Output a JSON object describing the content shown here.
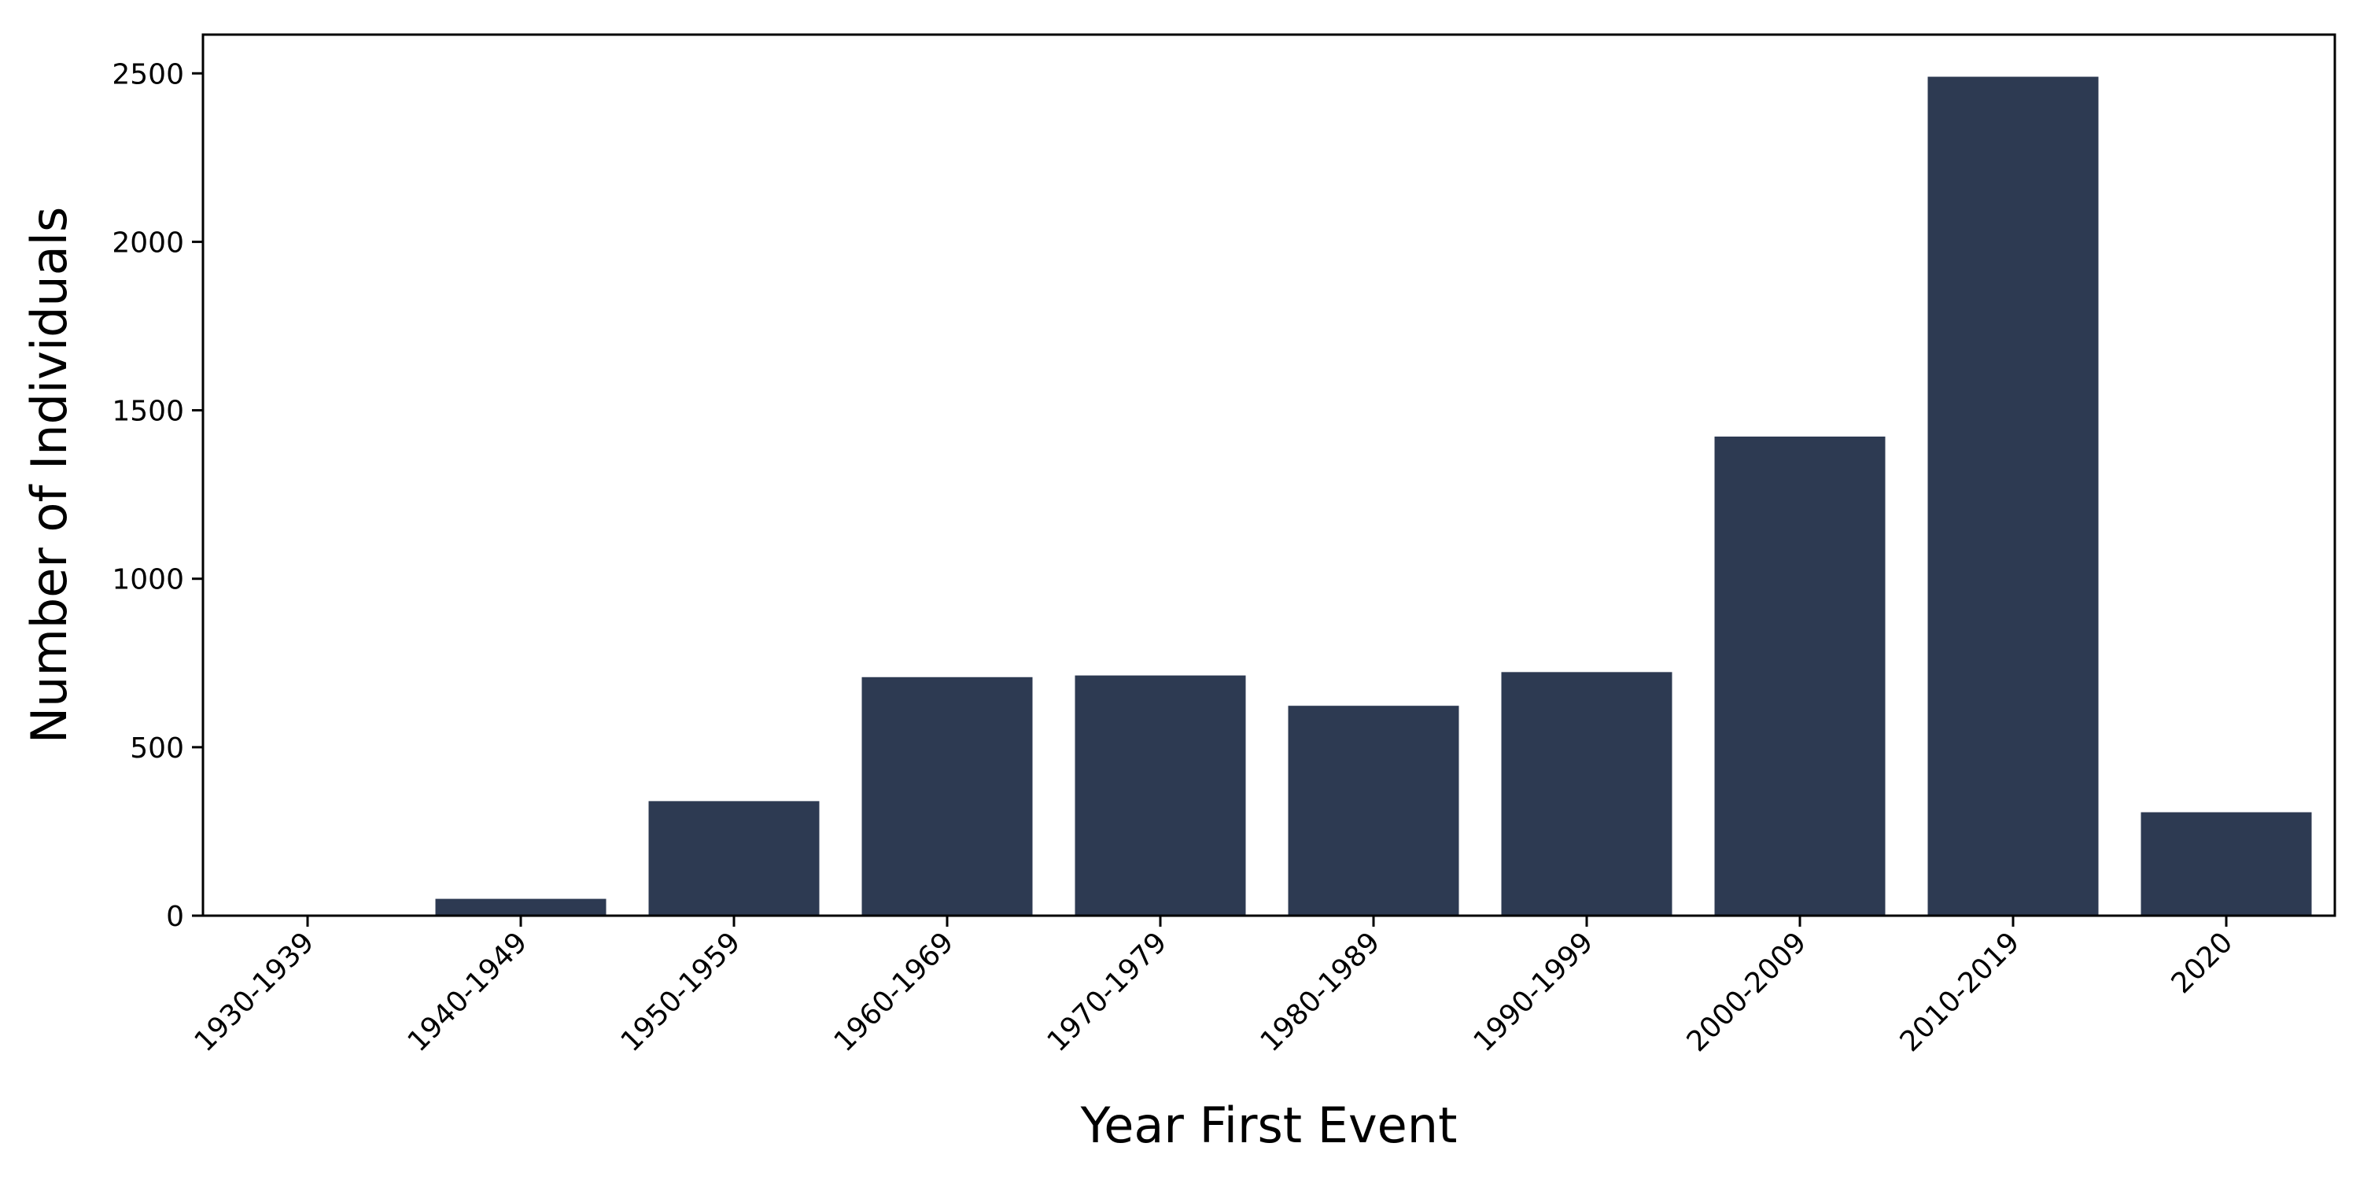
{
  "chart_data": {
    "type": "bar",
    "categories": [
      "1930-1939",
      "1940-1949",
      "1950-1959",
      "1960-1969",
      "1970-1979",
      "1980-1989",
      "1990-1999",
      "2000-2009",
      "2010-2019",
      "2020"
    ],
    "values": [
      2,
      50,
      340,
      708,
      713,
      623,
      723,
      1422,
      2490,
      307
    ],
    "xlabel": "Year First Event",
    "ylabel": "Number of Individuals",
    "ylim": [
      0,
      2615
    ],
    "yticks": [
      0,
      500,
      1000,
      1500,
      2000,
      2500
    ],
    "grid": false,
    "legend": "none",
    "colors": {
      "bar": "#2d3a52",
      "axis": "#000000"
    }
  }
}
